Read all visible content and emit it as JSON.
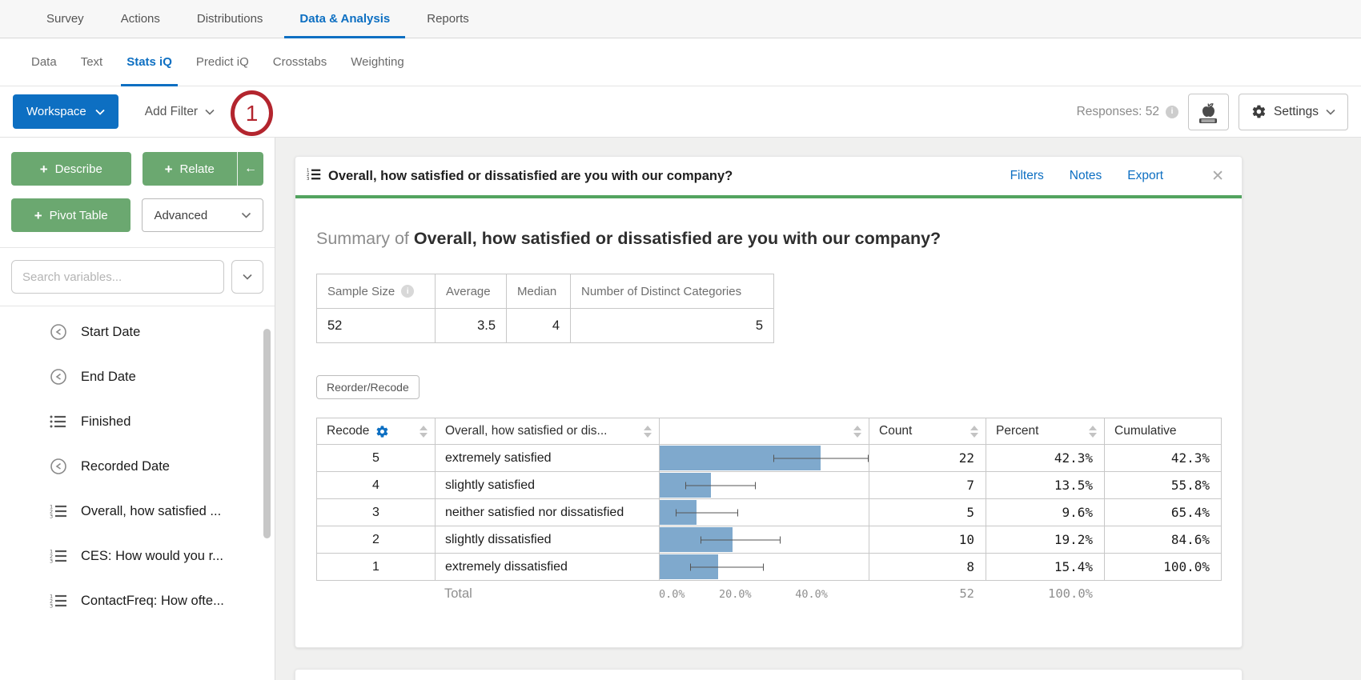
{
  "topnav": {
    "items": [
      "Survey",
      "Actions",
      "Distributions",
      "Data & Analysis",
      "Reports"
    ],
    "active": "Data & Analysis"
  },
  "subnav": {
    "items": [
      "Data",
      "Text",
      "Stats iQ",
      "Predict iQ",
      "Crosstabs",
      "Weighting"
    ],
    "active": "Stats iQ"
  },
  "toolbar": {
    "workspace": "Workspace",
    "add_filter": "Add Filter",
    "annotation_badge": "1",
    "responses": "Responses: 52",
    "settings": "Settings"
  },
  "sidebar": {
    "describe": "Describe",
    "relate": "Relate",
    "collapse_arrow": "←",
    "pivot_table": "Pivot Table",
    "advanced": "Advanced",
    "plus": "+",
    "search_placeholder": "Search variables...",
    "variables": [
      {
        "label": "Start Date",
        "icon": "clock-icon"
      },
      {
        "label": "End Date",
        "icon": "clock-icon"
      },
      {
        "label": "Finished",
        "icon": "bulleted-list-icon"
      },
      {
        "label": "Recorded Date",
        "icon": "clock-icon"
      },
      {
        "label": "Overall, how satisfied ...",
        "icon": "numbered-list-icon"
      },
      {
        "label": "CES: How would you r...",
        "icon": "numbered-list-icon"
      },
      {
        "label": "ContactFreq: How ofte...",
        "icon": "numbered-list-icon"
      }
    ]
  },
  "card": {
    "title": "Overall, how satisfied or dissatisfied are you with our company?",
    "links": {
      "filters": "Filters",
      "notes": "Notes",
      "export": "Export",
      "close": "✕"
    },
    "summary_prefix": "Summary of",
    "summary_title": "Overall, how satisfied or dissatisfied are you with our company?",
    "stats_table": {
      "headers": {
        "sample_size": "Sample Size",
        "average": "Average",
        "median": "Median",
        "distinct": "Number of Distinct Categories"
      },
      "values": {
        "sample_size": "52",
        "average": "3.5",
        "median": "4",
        "distinct": "5"
      }
    },
    "reorder_button": "Reorder/Recode",
    "freq_headers": {
      "recode": "Recode",
      "question": "Overall, how satisfied or dis...",
      "count": "Count",
      "percent": "Percent",
      "cumulative": "Cumulative"
    },
    "total_row": {
      "label": "Total",
      "count": "52",
      "percent": "100.0%"
    }
  },
  "chart_data": {
    "type": "bar",
    "title": "Overall, how satisfied or dissatisfied are you with our company?",
    "orientation": "horizontal",
    "sample_size": 52,
    "average": 3.5,
    "median": 4,
    "distinct_categories": 5,
    "x_axis_ticks": [
      "0.0%",
      "20.0%",
      "40.0%"
    ],
    "x_max_percent": 55,
    "bar_color": "#7fa9cd",
    "rows": [
      {
        "recode": "5",
        "label": "extremely satisfied",
        "count": "22",
        "percent": "42.3%",
        "cumulative": "42.3%",
        "ci_low": 29.9,
        "ci_high": 55.8
      },
      {
        "recode": "4",
        "label": "slightly satisfied",
        "count": "7",
        "percent": "13.5%",
        "cumulative": "55.8%",
        "ci_low": 6.7,
        "ci_high": 25.3
      },
      {
        "recode": "3",
        "label": "neither satisfied nor dissatisfied",
        "count": "5",
        "percent": "9.6%",
        "cumulative": "65.4%",
        "ci_low": 4.2,
        "ci_high": 20.6
      },
      {
        "recode": "2",
        "label": "slightly dissatisfied",
        "count": "10",
        "percent": "19.2%",
        "cumulative": "84.6%",
        "ci_low": 10.8,
        "ci_high": 31.9
      },
      {
        "recode": "1",
        "label": "extremely dissatisfied",
        "count": "8",
        "percent": "15.4%",
        "cumulative": "100.0%",
        "ci_low": 8.0,
        "ci_high": 27.5
      }
    ]
  },
  "colors": {
    "accent_blue": "#0d6fc2",
    "button_green": "#6ba870",
    "card_accent_green": "#52a35f",
    "annotation_red": "#b3252e",
    "bar_blue": "#7fa9cd"
  }
}
